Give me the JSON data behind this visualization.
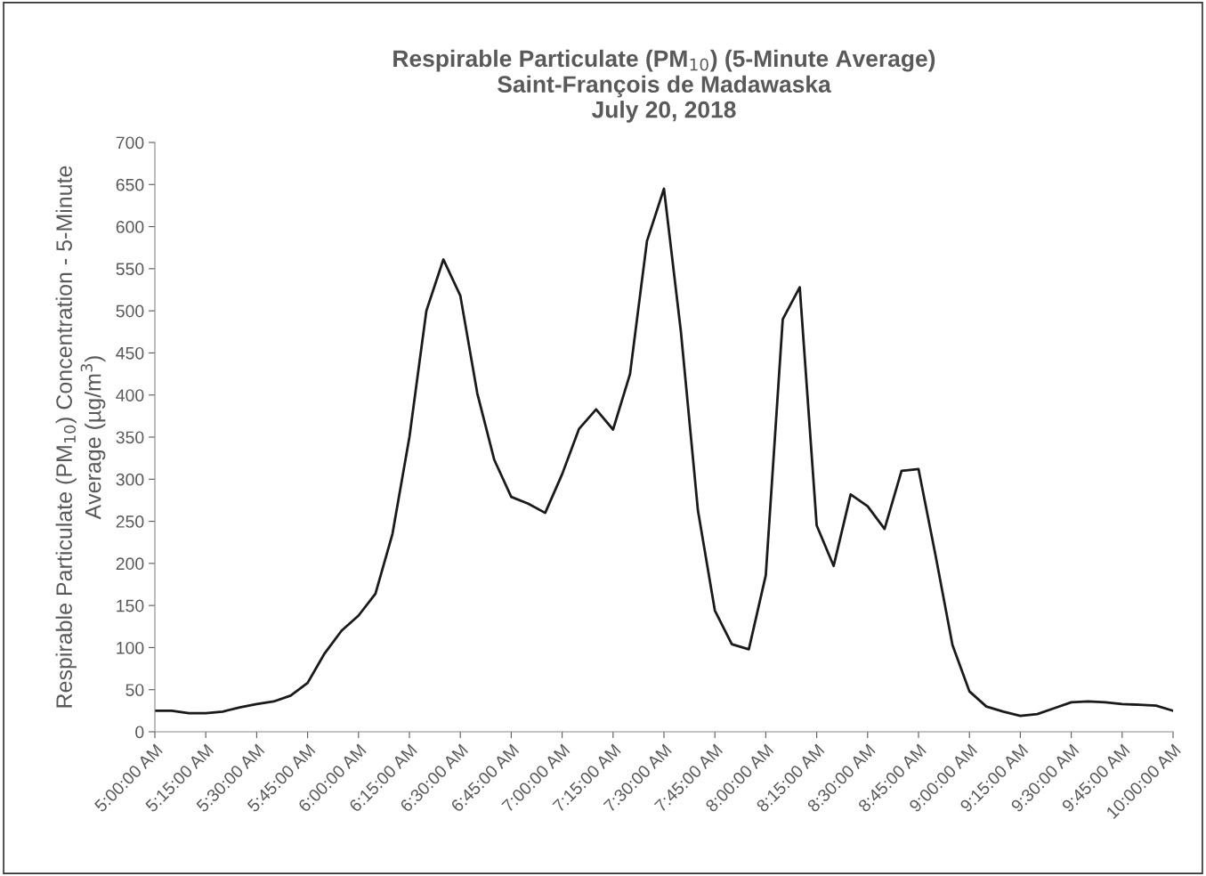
{
  "chart_data": {
    "type": "line",
    "title": "Respirable Particulate (PM$_{10}$) (5-Minute Average)\nSaint-François de Madawaska\nJuly 20, 2018",
    "ylabel": "Respirable Particulate (PM$_{10}$) Concentration - 5-Minute\nAverage (µg/m$^{3}$)",
    "x": [
      5.0,
      5.0833,
      5.1667,
      5.25,
      5.3333,
      5.4167,
      5.5,
      5.5833,
      5.6667,
      5.75,
      5.8333,
      5.9167,
      6.0,
      6.0833,
      6.1667,
      6.25,
      6.3333,
      6.4167,
      6.5,
      6.5833,
      6.6667,
      6.75,
      6.8333,
      6.9167,
      7.0,
      7.0833,
      7.1667,
      7.25,
      7.3333,
      7.4167,
      7.5,
      7.5833,
      7.6667,
      7.75,
      7.8333,
      7.9167,
      8.0,
      8.0833,
      8.1667,
      8.25,
      8.3333,
      8.4167,
      8.5,
      8.5833,
      8.6667,
      8.75,
      8.8333,
      8.9167,
      9.0,
      9.0833,
      9.1667,
      9.25,
      9.3333,
      9.4167,
      9.5,
      9.5833,
      9.6667,
      9.75,
      9.8333,
      9.9167,
      10.0
    ],
    "series": [
      {
        "color": "#1a1a1a",
        "values": [
          25,
          25,
          22,
          22,
          24,
          29,
          33,
          36,
          43,
          58,
          93,
          120,
          138,
          164,
          235,
          350,
          500,
          561,
          518,
          402,
          323,
          279,
          271,
          260,
          306,
          360,
          383,
          359,
          425,
          583,
          645,
          475,
          263,
          144,
          104,
          98,
          186,
          490,
          528,
          245,
          197,
          282,
          268,
          241,
          310,
          312,
          210,
          103,
          48,
          30,
          24,
          19,
          21,
          28,
          35,
          36,
          35,
          33,
          32,
          31,
          25
        ]
      }
    ],
    "xlim": [
      5,
      10
    ],
    "xticks": [
      {
        "value": 5,
        "label": "5:00:00 AM"
      },
      {
        "value": 5.25,
        "label": "5:15:00 AM"
      },
      {
        "value": 5.5,
        "label": "5:30:00 AM"
      },
      {
        "value": 5.75,
        "label": "5:45:00 AM"
      },
      {
        "value": 6,
        "label": "6:00:00 AM"
      },
      {
        "value": 6.25,
        "label": "6:15:00 AM"
      },
      {
        "value": 6.5,
        "label": "6:30:00 AM"
      },
      {
        "value": 6.75,
        "label": "6:45:00 AM"
      },
      {
        "value": 7,
        "label": "7:00:00 AM"
      },
      {
        "value": 7.25,
        "label": "7:15:00 AM"
      },
      {
        "value": 7.5,
        "label": "7:30:00 AM"
      },
      {
        "value": 7.75,
        "label": "7:45:00 AM"
      },
      {
        "value": 8,
        "label": "8:00:00 AM"
      },
      {
        "value": 8.25,
        "label": "8:15:00 AM"
      },
      {
        "value": 8.5,
        "label": "8:30:00 AM"
      },
      {
        "value": 8.75,
        "label": "8:45:00 AM"
      },
      {
        "value": 9,
        "label": "9:00:00 AM"
      },
      {
        "value": 9.25,
        "label": "9:15:00 AM"
      },
      {
        "value": 9.5,
        "label": "9:30:00 AM"
      },
      {
        "value": 9.75,
        "label": "9:45:00 AM"
      },
      {
        "value": 10,
        "label": "10:00:00 AM"
      }
    ],
    "ylim": [
      0,
      700
    ],
    "yticks": [
      0,
      50,
      100,
      150,
      200,
      250,
      300,
      350,
      400,
      450,
      500,
      550,
      600,
      650,
      700
    ],
    "grid": false,
    "legend": false,
    "marker": "none",
    "line_style": "solid"
  }
}
